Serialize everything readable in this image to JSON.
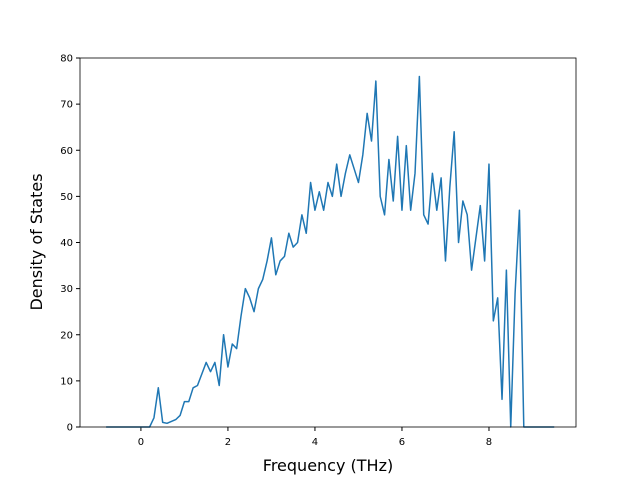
{
  "chart_data": {
    "type": "line",
    "xlabel": "Frequency (THz)",
    "ylabel": "Density of States",
    "x": [
      -0.8,
      -0.7,
      -0.6,
      -0.5,
      -0.4,
      -0.3,
      -0.2,
      -0.1,
      0,
      0.1,
      0.2,
      0.3,
      0.4,
      0.5,
      0.6,
      0.7,
      0.8,
      0.9,
      1,
      1.1,
      1.2,
      1.3,
      1.4,
      1.5,
      1.6,
      1.7,
      1.8,
      1.9,
      2,
      2.1,
      2.2,
      2.3,
      2.4,
      2.5,
      2.6,
      2.7,
      2.8,
      2.9,
      3,
      3.1,
      3.2,
      3.3,
      3.4,
      3.5,
      3.6,
      3.7,
      3.8,
      3.9,
      4,
      4.1,
      4.2,
      4.3,
      4.4,
      4.5,
      4.6,
      4.7,
      4.8,
      4.9,
      5,
      5.1,
      5.2,
      5.3,
      5.4,
      5.5,
      5.6,
      5.7,
      5.8,
      5.9,
      6,
      6.1,
      6.2,
      6.3,
      6.4,
      6.5,
      6.6,
      6.7,
      6.8,
      6.9,
      7,
      7.1,
      7.2,
      7.3,
      7.4,
      7.5,
      7.6,
      7.7,
      7.8,
      7.9,
      8,
      8.1,
      8.2,
      8.3,
      8.4,
      8.5,
      8.6,
      8.7,
      8.8,
      8.9,
      9,
      9.1,
      9.2,
      9.3,
      9.4,
      9.5
    ],
    "series": [
      {
        "color": "#1f77b4",
        "values": [
          0,
          0,
          0,
          0,
          0,
          0,
          0,
          0,
          0,
          0,
          0,
          2,
          8.5,
          1,
          0.8,
          1.2,
          1.6,
          2.5,
          5.5,
          5.5,
          8.5,
          9,
          11.5,
          14,
          12,
          14,
          9,
          20,
          13,
          18,
          17,
          24,
          30,
          28,
          25,
          30,
          32,
          36,
          41,
          33,
          36,
          37,
          42,
          39,
          40,
          46,
          42,
          53,
          47,
          51,
          47,
          53,
          50,
          57,
          50,
          55,
          59,
          56,
          53,
          59,
          68,
          62,
          75,
          50,
          46,
          58,
          49,
          63,
          47,
          61,
          47,
          55,
          76,
          46,
          44,
          55,
          47,
          54,
          36,
          52,
          64,
          40,
          49,
          46,
          34,
          41,
          48,
          36,
          57,
          23,
          28,
          6,
          34,
          0,
          29,
          47,
          0,
          0,
          0,
          0,
          0,
          0,
          0,
          0
        ]
      }
    ],
    "xlim": [
      -1.4,
      10.0
    ],
    "xticks": [
      0,
      2,
      4,
      6,
      8
    ],
    "ylim": [
      0,
      80
    ],
    "yticks": [
      0,
      10,
      20,
      30,
      40,
      50,
      60,
      70,
      80
    ]
  }
}
